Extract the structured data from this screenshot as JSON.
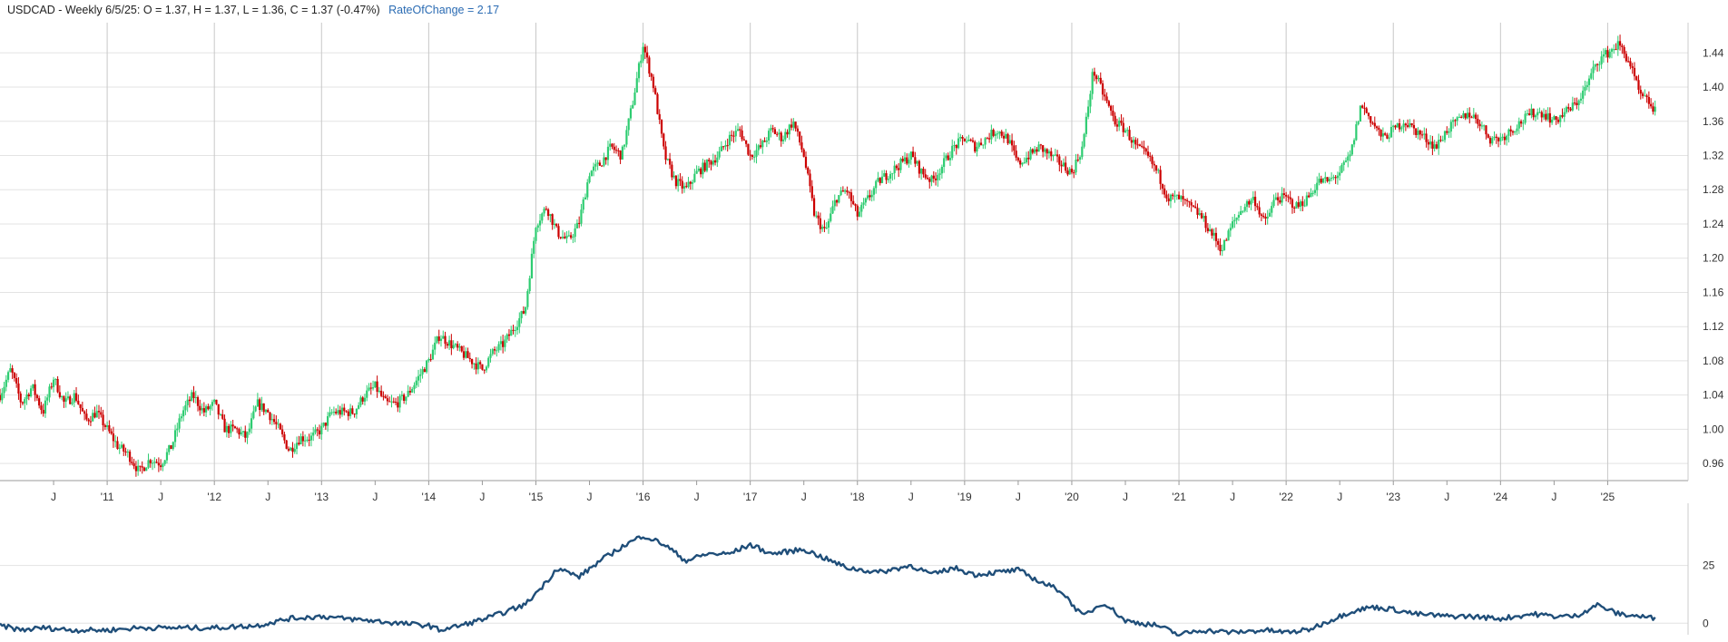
{
  "header": {
    "symbol_line": "USDCAD - Weekly 6/5/25:  O = 1.37,  H = 1.37,  L = 1.36,  C = 1.37 (-0.47%)",
    "indicator_line": "RateOfChange = 2.17"
  },
  "colors": {
    "up": "#2ecc71",
    "down": "#cc0000",
    "roc_line": "#1f4e79",
    "grid": "#e3e3e3",
    "year_line": "#c8c8c8",
    "axis_text": "#333333"
  },
  "chart_data": [
    {
      "type": "candlestick",
      "title": "",
      "x_range": [
        "2010-01",
        "2025-06"
      ],
      "ylim": [
        0.94,
        1.47
      ],
      "grid": true,
      "y_ticks": [
        "0.96",
        "1.00",
        "1.04",
        "1.08",
        "1.12",
        "1.16",
        "1.20",
        "1.24",
        "1.28",
        "1.32",
        "1.36",
        "1.40",
        "1.44"
      ],
      "x_ticks": [
        {
          "label": "J",
          "t": 2010.5
        },
        {
          "label": "'11",
          "t": 2011.0
        },
        {
          "label": "J",
          "t": 2011.5
        },
        {
          "label": "'12",
          "t": 2012.0
        },
        {
          "label": "J",
          "t": 2012.5
        },
        {
          "label": "'13",
          "t": 2013.0
        },
        {
          "label": "J",
          "t": 2013.5
        },
        {
          "label": "'14",
          "t": 2014.0
        },
        {
          "label": "J",
          "t": 2014.5
        },
        {
          "label": "'15",
          "t": 2015.0
        },
        {
          "label": "J",
          "t": 2015.5
        },
        {
          "label": "'16",
          "t": 2016.0
        },
        {
          "label": "J",
          "t": 2016.5
        },
        {
          "label": "'17",
          "t": 2017.0
        },
        {
          "label": "J",
          "t": 2017.5
        },
        {
          "label": "'18",
          "t": 2018.0
        },
        {
          "label": "J",
          "t": 2018.5
        },
        {
          "label": "'19",
          "t": 2019.0
        },
        {
          "label": "J",
          "t": 2019.5
        },
        {
          "label": "'20",
          "t": 2020.0
        },
        {
          "label": "J",
          "t": 2020.5
        },
        {
          "label": "'21",
          "t": 2021.0
        },
        {
          "label": "J",
          "t": 2021.5
        },
        {
          "label": "'22",
          "t": 2022.0
        },
        {
          "label": "J",
          "t": 2022.5
        },
        {
          "label": "'23",
          "t": 2023.0
        },
        {
          "label": "J",
          "t": 2023.5
        },
        {
          "label": "'24",
          "t": 2024.0
        },
        {
          "label": "J",
          "t": 2024.5
        },
        {
          "label": "'25",
          "t": 2025.0
        }
      ],
      "close_path": [
        [
          2010.0,
          1.04
        ],
        [
          2010.1,
          1.07
        ],
        [
          2010.2,
          1.03
        ],
        [
          2010.3,
          1.05
        ],
        [
          2010.4,
          1.02
        ],
        [
          2010.5,
          1.06
        ],
        [
          2010.6,
          1.03
        ],
        [
          2010.7,
          1.04
        ],
        [
          2010.8,
          1.01
        ],
        [
          2010.9,
          1.02
        ],
        [
          2011.0,
          1.0
        ],
        [
          2011.1,
          0.98
        ],
        [
          2011.2,
          0.97
        ],
        [
          2011.3,
          0.95
        ],
        [
          2011.4,
          0.965
        ],
        [
          2011.5,
          0.96
        ],
        [
          2011.6,
          0.98
        ],
        [
          2011.7,
          1.02
        ],
        [
          2011.8,
          1.04
        ],
        [
          2011.9,
          1.02
        ],
        [
          2012.0,
          1.03
        ],
        [
          2012.1,
          1.0
        ],
        [
          2012.2,
          1.0
        ],
        [
          2012.3,
          0.99
        ],
        [
          2012.4,
          1.03
        ],
        [
          2012.5,
          1.02
        ],
        [
          2012.6,
          1.0
        ],
        [
          2012.7,
          0.975
        ],
        [
          2012.8,
          0.99
        ],
        [
          2012.9,
          0.99
        ],
        [
          2013.0,
          1.0
        ],
        [
          2013.1,
          1.02
        ],
        [
          2013.2,
          1.02
        ],
        [
          2013.3,
          1.02
        ],
        [
          2013.4,
          1.04
        ],
        [
          2013.5,
          1.05
        ],
        [
          2013.6,
          1.03
        ],
        [
          2013.7,
          1.03
        ],
        [
          2013.8,
          1.04
        ],
        [
          2013.9,
          1.06
        ],
        [
          2014.0,
          1.08
        ],
        [
          2014.1,
          1.11
        ],
        [
          2014.2,
          1.1
        ],
        [
          2014.3,
          1.09
        ],
        [
          2014.4,
          1.08
        ],
        [
          2014.5,
          1.07
        ],
        [
          2014.6,
          1.09
        ],
        [
          2014.7,
          1.1
        ],
        [
          2014.8,
          1.12
        ],
        [
          2014.9,
          1.14
        ],
        [
          2015.0,
          1.24
        ],
        [
          2015.1,
          1.26
        ],
        [
          2015.2,
          1.23
        ],
        [
          2015.3,
          1.22
        ],
        [
          2015.4,
          1.24
        ],
        [
          2015.5,
          1.3
        ],
        [
          2015.6,
          1.31
        ],
        [
          2015.7,
          1.33
        ],
        [
          2015.8,
          1.32
        ],
        [
          2015.9,
          1.38
        ],
        [
          2016.0,
          1.45
        ],
        [
          2016.1,
          1.4
        ],
        [
          2016.2,
          1.32
        ],
        [
          2016.3,
          1.29
        ],
        [
          2016.4,
          1.28
        ],
        [
          2016.5,
          1.3
        ],
        [
          2016.6,
          1.31
        ],
        [
          2016.7,
          1.32
        ],
        [
          2016.8,
          1.34
        ],
        [
          2016.9,
          1.35
        ],
        [
          2017.0,
          1.32
        ],
        [
          2017.1,
          1.33
        ],
        [
          2017.2,
          1.35
        ],
        [
          2017.3,
          1.34
        ],
        [
          2017.4,
          1.36
        ],
        [
          2017.5,
          1.32
        ],
        [
          2017.6,
          1.25
        ],
        [
          2017.7,
          1.23
        ],
        [
          2017.8,
          1.27
        ],
        [
          2017.9,
          1.28
        ],
        [
          2018.0,
          1.25
        ],
        [
          2018.1,
          1.27
        ],
        [
          2018.2,
          1.29
        ],
        [
          2018.3,
          1.3
        ],
        [
          2018.4,
          1.31
        ],
        [
          2018.5,
          1.32
        ],
        [
          2018.6,
          1.3
        ],
        [
          2018.7,
          1.29
        ],
        [
          2018.8,
          1.31
        ],
        [
          2018.9,
          1.33
        ],
        [
          2019.0,
          1.34
        ],
        [
          2019.1,
          1.33
        ],
        [
          2019.2,
          1.34
        ],
        [
          2019.3,
          1.35
        ],
        [
          2019.4,
          1.34
        ],
        [
          2019.5,
          1.31
        ],
        [
          2019.6,
          1.32
        ],
        [
          2019.7,
          1.33
        ],
        [
          2019.8,
          1.32
        ],
        [
          2019.9,
          1.31
        ],
        [
          2020.0,
          1.3
        ],
        [
          2020.1,
          1.33
        ],
        [
          2020.2,
          1.42
        ],
        [
          2020.3,
          1.39
        ],
        [
          2020.4,
          1.36
        ],
        [
          2020.5,
          1.35
        ],
        [
          2020.6,
          1.33
        ],
        [
          2020.7,
          1.32
        ],
        [
          2020.8,
          1.3
        ],
        [
          2020.9,
          1.27
        ],
        [
          2021.0,
          1.27
        ],
        [
          2021.1,
          1.26
        ],
        [
          2021.2,
          1.25
        ],
        [
          2021.3,
          1.23
        ],
        [
          2021.4,
          1.21
        ],
        [
          2021.5,
          1.24
        ],
        [
          2021.6,
          1.26
        ],
        [
          2021.7,
          1.27
        ],
        [
          2021.8,
          1.24
        ],
        [
          2021.9,
          1.27
        ],
        [
          2022.0,
          1.27
        ],
        [
          2022.1,
          1.26
        ],
        [
          2022.2,
          1.27
        ],
        [
          2022.3,
          1.29
        ],
        [
          2022.4,
          1.29
        ],
        [
          2022.5,
          1.3
        ],
        [
          2022.6,
          1.32
        ],
        [
          2022.7,
          1.38
        ],
        [
          2022.8,
          1.36
        ],
        [
          2022.9,
          1.34
        ],
        [
          2023.0,
          1.35
        ],
        [
          2023.1,
          1.36
        ],
        [
          2023.2,
          1.35
        ],
        [
          2023.3,
          1.34
        ],
        [
          2023.4,
          1.33
        ],
        [
          2023.5,
          1.35
        ],
        [
          2023.6,
          1.36
        ],
        [
          2023.7,
          1.37
        ],
        [
          2023.8,
          1.36
        ],
        [
          2023.9,
          1.34
        ],
        [
          2024.0,
          1.34
        ],
        [
          2024.1,
          1.35
        ],
        [
          2024.2,
          1.36
        ],
        [
          2024.3,
          1.37
        ],
        [
          2024.4,
          1.37
        ],
        [
          2024.5,
          1.36
        ],
        [
          2024.6,
          1.37
        ],
        [
          2024.7,
          1.38
        ],
        [
          2024.8,
          1.4
        ],
        [
          2024.9,
          1.43
        ],
        [
          2025.0,
          1.44
        ],
        [
          2025.1,
          1.45
        ],
        [
          2025.2,
          1.43
        ],
        [
          2025.3,
          1.39
        ],
        [
          2025.4,
          1.38
        ],
        [
          2025.45,
          1.37
        ]
      ]
    },
    {
      "type": "line",
      "title": "",
      "series": [
        {
          "values_note_free": true
        }
      ],
      "y_ticks": [
        "25",
        "0"
      ],
      "ylim": [
        -5,
        48
      ],
      "roc_path": [
        [
          2010.0,
          -1
        ],
        [
          2010.2,
          -3
        ],
        [
          2010.4,
          -2
        ],
        [
          2010.7,
          -3
        ],
        [
          2011.0,
          -3
        ],
        [
          2011.3,
          -2
        ],
        [
          2011.6,
          -2
        ],
        [
          2012.0,
          -2
        ],
        [
          2012.4,
          -1
        ],
        [
          2012.7,
          2
        ],
        [
          2013.0,
          3
        ],
        [
          2013.2,
          2
        ],
        [
          2013.5,
          1
        ],
        [
          2013.7,
          0
        ],
        [
          2014.0,
          -1
        ],
        [
          2014.1,
          -3
        ],
        [
          2014.3,
          -1
        ],
        [
          2014.6,
          3
        ],
        [
          2014.9,
          8
        ],
        [
          2015.1,
          18
        ],
        [
          2015.2,
          24
        ],
        [
          2015.4,
          20
        ],
        [
          2015.6,
          27
        ],
        [
          2015.8,
          33
        ],
        [
          2016.0,
          38
        ],
        [
          2016.2,
          34
        ],
        [
          2016.4,
          27
        ],
        [
          2016.6,
          30
        ],
        [
          2016.8,
          30
        ],
        [
          2017.0,
          34
        ],
        [
          2017.2,
          30
        ],
        [
          2017.5,
          32
        ],
        [
          2017.7,
          28
        ],
        [
          2017.9,
          24
        ],
        [
          2018.2,
          22
        ],
        [
          2018.5,
          25
        ],
        [
          2018.7,
          21
        ],
        [
          2018.9,
          24
        ],
        [
          2019.1,
          21
        ],
        [
          2019.3,
          22
        ],
        [
          2019.5,
          23
        ],
        [
          2019.7,
          18
        ],
        [
          2019.9,
          14
        ],
        [
          2020.1,
          3
        ],
        [
          2020.3,
          9
        ],
        [
          2020.5,
          1
        ],
        [
          2020.8,
          -1
        ],
        [
          2021.0,
          -5
        ],
        [
          2021.2,
          -3
        ],
        [
          2021.5,
          -4
        ],
        [
          2021.8,
          -3
        ],
        [
          2022.0,
          -4
        ],
        [
          2022.2,
          -3
        ],
        [
          2022.4,
          1
        ],
        [
          2022.6,
          5
        ],
        [
          2022.8,
          7
        ],
        [
          2023.0,
          6
        ],
        [
          2023.2,
          4
        ],
        [
          2023.5,
          3
        ],
        [
          2023.7,
          3
        ],
        [
          2024.0,
          2
        ],
        [
          2024.3,
          4
        ],
        [
          2024.5,
          3
        ],
        [
          2024.7,
          3
        ],
        [
          2024.9,
          8
        ],
        [
          2025.1,
          4
        ],
        [
          2025.3,
          3
        ],
        [
          2025.45,
          2
        ]
      ]
    }
  ]
}
